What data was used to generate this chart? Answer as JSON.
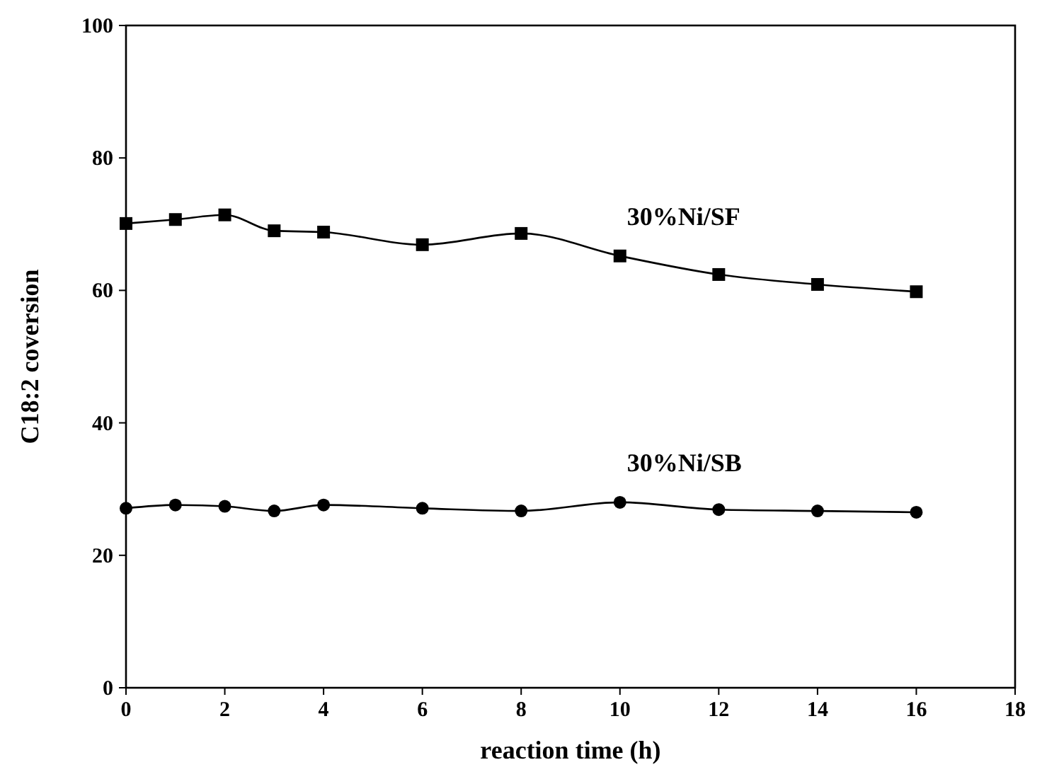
{
  "chart_data": {
    "type": "line",
    "xlabel": "reaction time (h)",
    "ylabel": "C18:2 coversion",
    "x": [
      0,
      1,
      2,
      3,
      4,
      6,
      8,
      10,
      12,
      14,
      16
    ],
    "series": [
      {
        "name": "30%Ni/SF",
        "color": "#000000",
        "marker": "square",
        "values": [
          70.1,
          70.7,
          71.4,
          69.0,
          68.8,
          66.9,
          68.6,
          65.2,
          62.4,
          60.9,
          59.8
        ]
      },
      {
        "name": "30%Ni/SB",
        "color": "#000000",
        "marker": "circle",
        "values": [
          27.1,
          27.6,
          27.4,
          26.7,
          27.6,
          27.1,
          26.7,
          28.0,
          26.9,
          26.7,
          26.5
        ]
      }
    ],
    "xlim": [
      0,
      18
    ],
    "xticks": [
      0,
      2,
      4,
      6,
      8,
      10,
      12,
      14,
      16,
      18
    ],
    "ylim": [
      0,
      100
    ],
    "yticks": [
      0,
      20,
      40,
      60,
      80,
      100
    ],
    "grid": false,
    "line_style": "solid"
  }
}
